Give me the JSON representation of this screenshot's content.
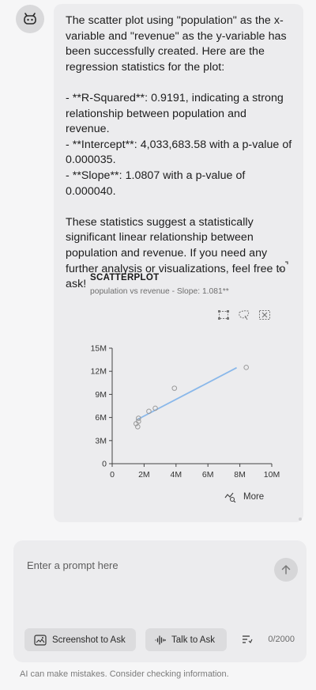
{
  "assistant": {
    "avatar_icon": "robot-icon"
  },
  "message": {
    "text": "The scatter plot using \"population\" as the x-variable and \"revenue\" as the y-variable has been successfully created. Here are the regression statistics for the plot:\n\n- **R-Squared**: 0.9191, indicating a strong relationship between population and revenue.\n- **Intercept**: 4,033,683.58 with a p-value of 0.000035.\n- **Slope**: 1.0807 with a p-value of 0.000040.\n\nThese statistics suggest a statistically significant linear relationship between population and revenue. If you need any further analysis or visualizations, feel free to ask!"
  },
  "chart": {
    "title": "SCATTERPLOT",
    "subtitle": "population vs revenue - Slope: 1.081**",
    "tools": [
      "select-box-icon",
      "lasso-icon",
      "clear-selection-icon"
    ],
    "more_label": "More",
    "expand_icon": "expand-icon"
  },
  "chart_data": {
    "type": "scatter",
    "title": "SCATTERPLOT",
    "subtitle": "population vs revenue - Slope: 1.081**",
    "xlabel": "",
    "ylabel": "",
    "xlim": [
      0,
      10000000
    ],
    "ylim": [
      0,
      15000000
    ],
    "x_ticks": [
      "0",
      "2M",
      "4M",
      "6M",
      "8M",
      "10M"
    ],
    "x_tick_values": [
      0,
      2000000,
      4000000,
      6000000,
      8000000,
      10000000
    ],
    "y_ticks": [
      "0",
      "3M",
      "6M",
      "9M",
      "12M",
      "15M"
    ],
    "y_tick_values": [
      0,
      3000000,
      6000000,
      9000000,
      12000000,
      15000000
    ],
    "points": [
      {
        "x": 1500000,
        "y": 5200000
      },
      {
        "x": 1600000,
        "y": 4800000
      },
      {
        "x": 1650000,
        "y": 5500000
      },
      {
        "x": 1650000,
        "y": 5900000
      },
      {
        "x": 2300000,
        "y": 6800000
      },
      {
        "x": 2700000,
        "y": 7200000
      },
      {
        "x": 3900000,
        "y": 9800000
      },
      {
        "x": 8400000,
        "y": 12500000
      }
    ],
    "regression_line": {
      "x": [
        1500000,
        7800000
      ],
      "y": [
        5650000,
        12460000
      ]
    },
    "point_color": "#9a9a9a",
    "line_color": "#8ab8ea",
    "grid": false
  },
  "composer": {
    "placeholder": "Enter a prompt here",
    "screenshot_label": "Screenshot to Ask",
    "talk_label": "Talk to Ask",
    "counter": "0/2000"
  },
  "disclaimer": "AI can make mistakes. Consider checking information."
}
